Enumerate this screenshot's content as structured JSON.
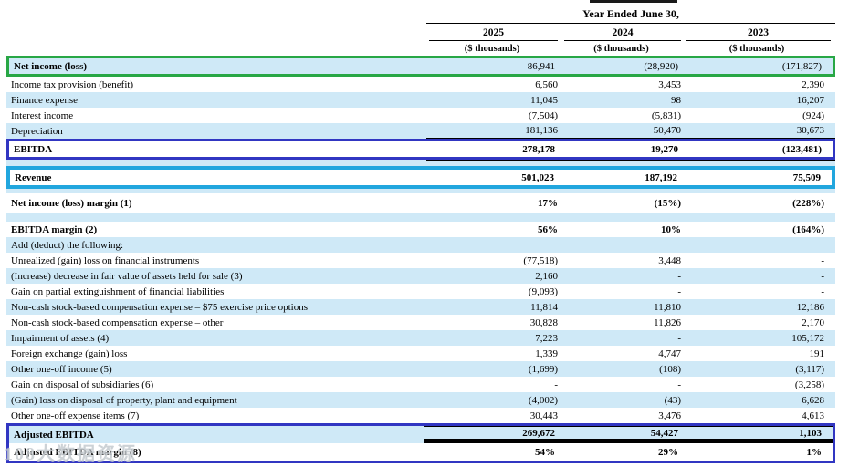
{
  "colors": {
    "row_highlight_blue": "#cfe9f7",
    "box_green": "#28a745",
    "box_navy": "#3136c2",
    "box_cyan": "#21a6de",
    "text": "#000000"
  },
  "watermark": "108大数据资源",
  "header": {
    "group_title": "Year Ended June 30,",
    "columns": [
      {
        "year": "2025",
        "unit": "($ thousands)"
      },
      {
        "year": "2024",
        "unit": "($ thousands)"
      },
      {
        "year": "2023",
        "unit": "($ thousands)"
      }
    ]
  },
  "table": {
    "rows": [
      {
        "label": "Net income (loss)",
        "values": [
          "86,941",
          "(28,920)",
          "(171,827)"
        ],
        "bg": "blue",
        "labelBold": true,
        "valuesBold": false,
        "box": "green"
      },
      {
        "label": "Income tax provision (benefit)",
        "values": [
          "6,560",
          "3,453",
          "2,390"
        ],
        "bg": "white"
      },
      {
        "label": "Finance expense",
        "values": [
          "11,045",
          "98",
          "16,207"
        ],
        "bg": "blue"
      },
      {
        "label": "Interest income",
        "values": [
          "(7,504)",
          "(5,831)",
          "(924)"
        ],
        "bg": "white"
      },
      {
        "label": "Depreciation",
        "values": [
          "181,136",
          "50,470",
          "30,673"
        ],
        "bg": "blue",
        "numRuleBottom": "single"
      },
      {
        "label": "EBITDA",
        "values": [
          "278,178",
          "19,270",
          "(123,481)"
        ],
        "bg": "white",
        "labelBold": true,
        "valuesBold": true,
        "box": "navy"
      },
      {
        "type": "spacer",
        "bg": "blue",
        "h": 7,
        "numRuleTop": true
      },
      {
        "label": "Revenue",
        "values": [
          "501,023",
          "187,192",
          "75,509"
        ],
        "bg": "white",
        "labelBold": true,
        "valuesBold": true,
        "box": "cyan"
      },
      {
        "type": "spacer",
        "bg": "blue",
        "h": 5
      },
      {
        "label": "Net income (loss) margin (1)",
        "values": [
          "17%",
          "(15%)",
          "(228%)"
        ],
        "bg": "white",
        "labelBold": true,
        "valuesBold": true,
        "tall": true
      },
      {
        "type": "spacer",
        "bg": "blue",
        "h": 9
      },
      {
        "label": "EBITDA margin (2)",
        "values": [
          "56%",
          "10%",
          "(164%)"
        ],
        "bg": "white",
        "labelBold": true,
        "valuesBold": true
      },
      {
        "label": "Add (deduct) the following:",
        "values": [
          "",
          "",
          ""
        ],
        "bg": "blue"
      },
      {
        "label": "Unrealized (gain) loss on financial instruments",
        "values": [
          "(77,518)",
          "3,448",
          "-"
        ],
        "bg": "white"
      },
      {
        "label": "(Increase) decrease in fair value of assets held for sale (3)",
        "values": [
          "2,160",
          "-",
          "-"
        ],
        "bg": "blue"
      },
      {
        "label": "Gain on partial extinguishment of financial liabilities",
        "values": [
          "(9,093)",
          "-",
          "-"
        ],
        "bg": "white"
      },
      {
        "label": "Non-cash stock-based compensation expense – $75 exercise price options",
        "values": [
          "11,814",
          "11,810",
          "12,186"
        ],
        "bg": "blue"
      },
      {
        "label": "Non-cash stock-based compensation expense – other",
        "values": [
          "30,828",
          "11,826",
          "2,170"
        ],
        "bg": "white"
      },
      {
        "label": "Impairment of assets (4)",
        "values": [
          "7,223",
          "-",
          "105,172"
        ],
        "bg": "blue"
      },
      {
        "label": "Foreign exchange (gain) loss",
        "values": [
          "1,339",
          "4,747",
          "191"
        ],
        "bg": "white"
      },
      {
        "label": "Other one-off income (5)",
        "values": [
          "(1,699)",
          "(108)",
          "(3,117)"
        ],
        "bg": "blue"
      },
      {
        "label": "Gain on disposal of subsidiaries (6)",
        "values": [
          "-",
          "-",
          "(3,258)"
        ],
        "bg": "white"
      },
      {
        "label": "(Gain) loss on disposal of property, plant and equipment",
        "values": [
          "(4,002)",
          "(43)",
          "6,628"
        ],
        "bg": "blue"
      },
      {
        "label": "Other one-off expense items (7)",
        "values": [
          "30,443",
          "3,476",
          "4,613"
        ],
        "bg": "white"
      },
      {
        "label": "Adjusted EBITDA",
        "values": [
          "269,672",
          "54,427",
          "1,103"
        ],
        "bg": "blue",
        "labelBold": true,
        "valuesBold": true,
        "group": "bottom",
        "tall2": true,
        "numRuleTop1": true,
        "numRuleBottom": "double"
      },
      {
        "label": "Adjusted EBITDA margin (8)",
        "values": [
          "54%",
          "29%",
          "1%"
        ],
        "bg": "white",
        "labelBold": true,
        "valuesBold": true,
        "group": "bottom",
        "tall2": true
      }
    ]
  }
}
